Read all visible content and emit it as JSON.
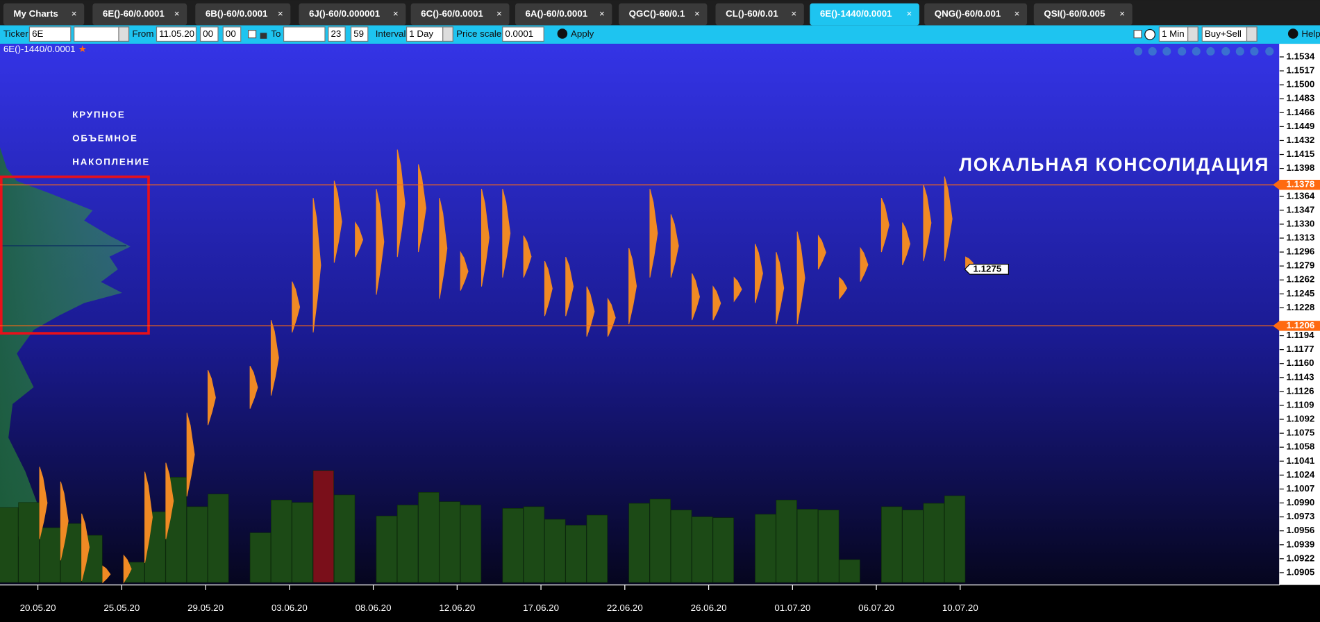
{
  "tabs": [
    "My Charts",
    "6E()-60/0.0001",
    "6B()-60/0.0001",
    "6J()-60/0.000001",
    "6C()-60/0.0001",
    "6A()-60/0.0001",
    "QGC()-60/0.1",
    "CL()-60/0.01",
    "6E()-1440/0.0001",
    "QNG()-60/0.001",
    "QSI()-60/0.005"
  ],
  "active_tab": 8,
  "toolbar": {
    "ticker_label": "Ticker",
    "ticker": "6E",
    "from_label": "From",
    "from_date": "11.05.20",
    "from_hour": "00",
    "from_min": "00",
    "to_label": "To",
    "to_hour": "23",
    "to_min": "59",
    "interval_label": "Interval",
    "interval": "1 Day",
    "price_scale_label": "Price scale",
    "price_scale": "0.0001",
    "apply": "Apply",
    "timeframe": "1 Min",
    "mode": "Buy+Sell",
    "help": "Help"
  },
  "chart_data": {
    "type": "volume-profile",
    "title": "6E()-1440/0.0001",
    "annotation_left": [
      "КРУПНОЕ",
      "ОБЪЕМНОЕ",
      "НАКОПЛЕНИЕ"
    ],
    "annotation_right": "ЛОКАЛЬНАЯ КОНСОЛИДАЦИЯ",
    "ylim": [
      1.089,
      1.155
    ],
    "yticks": [
      1.1534,
      1.1517,
      {
        "value": 1.15,
        "label": "1.1500"
      },
      1.1483,
      1.1466,
      1.1449,
      1.1432,
      1.1415,
      1.1398,
      1.1364,
      1.1347,
      {
        "value": 1.133,
        "label": "1.1330"
      },
      1.1313,
      1.1296,
      1.1279,
      1.1262,
      1.1245,
      1.1228,
      1.1194,
      1.1177,
      {
        "value": 1.116,
        "label": "1.1160"
      },
      1.1143,
      1.1126,
      1.1109,
      1.1092,
      1.1075,
      1.1058,
      1.1041,
      1.1024,
      1.1007,
      {
        "value": 1.099,
        "label": "1.0990"
      },
      1.0973,
      1.0956,
      1.0939,
      1.0922,
      1.0905
    ],
    "xtick_labels": [
      "20.05.20",
      "25.05.20",
      "29.05.20",
      "03.06.20",
      "08.06.20",
      "12.06.20",
      "17.06.20",
      "22.06.20",
      "26.06.20",
      "01.07.20",
      "06.07.20",
      "10.07.20"
    ],
    "levels": [
      1.1378,
      1.1206
    ],
    "level_color": "#ff6a10",
    "last_price": 1.1275,
    "profile_color": "#f08a24",
    "high": [
      null,
      1.1034,
      1.1016,
      1.0977,
      1.0913,
      1.0926,
      1.1028,
      1.1039,
      1.11,
      1.1152,
      null,
      1.1157,
      1.1213,
      1.126,
      1.1362,
      1.1383,
      1.1332,
      1.1373,
      1.1421,
      1.1403,
      1.1362,
      1.1296,
      1.1373,
      1.1373,
      1.1316,
      1.1285,
      1.129,
      1.1254,
      1.1239,
      1.1301,
      1.1373,
      1.1342,
      1.127,
      1.1254,
      1.1265,
      1.1306,
      1.1296,
      1.1321,
      1.1316,
      1.1265,
      1.1301,
      1.1362,
      1.1332,
      1.1378,
      1.1388,
      1.129
    ],
    "low": [
      null,
      1.0946,
      1.092,
      1.0895,
      1.0893,
      1.0893,
      1.0917,
      1.0946,
      1.0998,
      1.1085,
      null,
      1.1105,
      1.1121,
      1.1198,
      1.1198,
      1.1283,
      1.129,
      1.1244,
      1.129,
      1.1296,
      1.1239,
      1.1249,
      1.1254,
      1.1265,
      1.1265,
      1.1218,
      1.1218,
      1.1193,
      1.1193,
      1.1208,
      1.1265,
      1.1265,
      1.1213,
      1.1213,
      1.1236,
      1.1234,
      1.1208,
      1.1208,
      1.1275,
      1.1239,
      1.126,
      1.1296,
      1.128,
      1.1285,
      1.1285,
      1.1275
    ],
    "volume": {
      "color": "#1c4a16",
      "values": [
        89,
        95,
        65,
        70,
        56,
        null,
        24,
        84,
        125,
        90,
        105,
        null,
        59,
        98,
        95,
        133,
        104,
        null,
        79,
        92,
        107,
        96,
        92,
        null,
        88,
        90,
        75,
        68,
        80,
        null,
        94,
        99,
        86,
        78,
        77,
        null,
        81,
        98,
        87,
        86,
        27,
        null,
        90,
        86,
        94,
        103
      ]
    },
    "volume_marked": {
      "color": "#7a0f1a",
      "indices": [
        15
      ]
    }
  }
}
